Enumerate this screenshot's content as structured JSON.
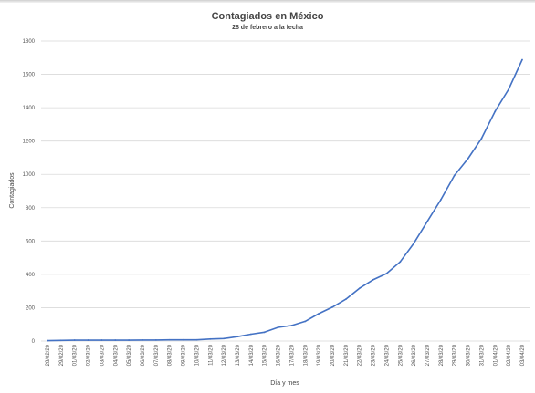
{
  "chart_data": {
    "type": "line",
    "title": "Contagiados en México",
    "subtitle": "28 de febrero a la fecha",
    "xlabel": "Día y mes",
    "ylabel": "Contagiados",
    "ylim": [
      0,
      1800
    ],
    "yticks": [
      0,
      200,
      400,
      600,
      800,
      1000,
      1200,
      1400,
      1600,
      1800
    ],
    "grid": true,
    "legend": "none",
    "colors": {
      "series": "#4472c4",
      "grid": "#d9d9d9"
    },
    "categories": [
      "28/02/20",
      "29/02/20",
      "01/03/20",
      "02/03/20",
      "03/03/20",
      "04/03/20",
      "05/03/20",
      "06/03/20",
      "07/03/20",
      "08/03/20",
      "09/03/20",
      "10/03/20",
      "11/03/20",
      "12/03/20",
      "13/03/20",
      "14/03/20",
      "15/03/20",
      "16/03/20",
      "17/03/20",
      "18/03/20",
      "19/03/20",
      "20/03/20",
      "21/03/20",
      "22/03/20",
      "23/03/20",
      "24/03/20",
      "25/03/20",
      "26/03/20",
      "27/03/20",
      "28/03/20",
      "29/03/20",
      "30/03/20",
      "31/03/20",
      "01/04/20",
      "02/04/20",
      "03/04/20"
    ],
    "series": [
      {
        "values": [
          2,
          4,
          5,
          5,
          5,
          5,
          5,
          6,
          6,
          7,
          7,
          7,
          12,
          15,
          26,
          41,
          53,
          82,
          93,
          118,
          164,
          203,
          251,
          316,
          367,
          405,
          475,
          585,
          717,
          848,
          993,
          1094,
          1215,
          1378,
          1510,
          1688
        ]
      }
    ]
  }
}
